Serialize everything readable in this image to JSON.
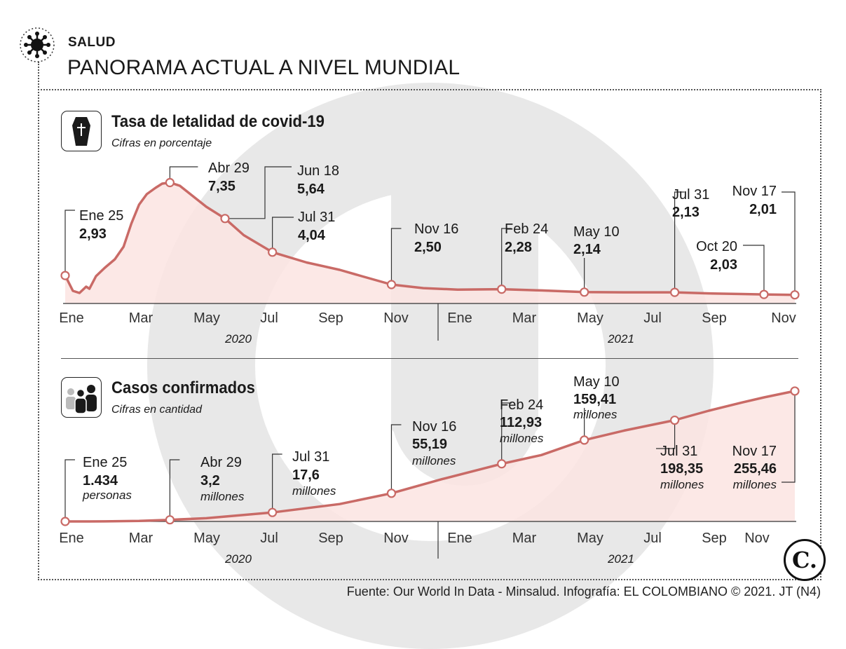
{
  "header": {
    "section": "SALUD",
    "title": "PANORAMA ACTUAL A NIVEL MUNDIAL"
  },
  "colors": {
    "line": "#c96a66",
    "fill": "#fbe4e2",
    "watermark": "#e7e7e7",
    "text": "#1a1a1a"
  },
  "charts": {
    "lethality": {
      "title": "Tasa de letalidad de covid-19",
      "subtitle": "Cifras en porcentaje",
      "icon": "coffin-icon"
    },
    "cases": {
      "title": "Casos confirmados",
      "subtitle": "Cifras en cantidad",
      "icon": "people-icon"
    }
  },
  "axis": {
    "months": [
      "Ene",
      "Mar",
      "May",
      "Jul",
      "Sep",
      "Nov",
      "Ene",
      "Mar",
      "May",
      "Jul",
      "Sep",
      "Nov"
    ],
    "years": [
      "2020",
      "2021"
    ]
  },
  "chart_data": [
    {
      "type": "area",
      "title": "Tasa de letalidad de covid-19",
      "subtitle": "Cifras en porcentaje",
      "unit": "%",
      "x_range": [
        "2020-01-25",
        "2021-11-17"
      ],
      "ylim": [
        1.6,
        7.6
      ],
      "series": [
        {
          "name": "Tasa de letalidad",
          "points": [
            [
              "2020-01-25",
              2.93
            ],
            [
              "2020-02-01",
              2.2
            ],
            [
              "2020-02-07",
              2.1
            ],
            [
              "2020-02-13",
              2.4
            ],
            [
              "2020-02-16",
              2.3
            ],
            [
              "2020-02-22",
              2.9
            ],
            [
              "2020-03-01",
              3.3
            ],
            [
              "2020-03-10",
              3.7
            ],
            [
              "2020-03-18",
              4.3
            ],
            [
              "2020-03-25",
              5.4
            ],
            [
              "2020-04-01",
              6.3
            ],
            [
              "2020-04-08",
              6.8
            ],
            [
              "2020-04-16",
              7.1
            ],
            [
              "2020-04-22",
              7.3
            ],
            [
              "2020-04-29",
              7.35
            ],
            [
              "2020-05-08",
              7.2
            ],
            [
              "2020-05-20",
              6.7
            ],
            [
              "2020-06-01",
              6.2
            ],
            [
              "2020-06-18",
              5.64
            ],
            [
              "2020-07-05",
              4.85
            ],
            [
              "2020-07-31",
              4.04
            ],
            [
              "2020-08-31",
              3.55
            ],
            [
              "2020-09-30",
              3.2
            ],
            [
              "2020-10-20",
              2.9
            ],
            [
              "2020-11-16",
              2.5
            ],
            [
              "2020-12-15",
              2.33
            ],
            [
              "2021-01-15",
              2.26
            ],
            [
              "2021-02-24",
              2.28
            ],
            [
              "2021-04-01",
              2.22
            ],
            [
              "2021-05-10",
              2.14
            ],
            [
              "2021-06-15",
              2.13
            ],
            [
              "2021-07-31",
              2.13
            ],
            [
              "2021-08-31",
              2.08
            ],
            [
              "2021-09-30",
              2.05
            ],
            [
              "2021-10-20",
              2.03
            ],
            [
              "2021-11-17",
              2.01
            ]
          ]
        }
      ],
      "annotations": [
        {
          "date": "2020-01-25",
          "label": "Ene 25",
          "value": "2,93"
        },
        {
          "date": "2020-04-29",
          "label": "Abr 29",
          "value": "7,35"
        },
        {
          "date": "2020-06-18",
          "label": "Jun 18",
          "value": "5,64"
        },
        {
          "date": "2020-07-31",
          "label": "Jul 31",
          "value": "4,04"
        },
        {
          "date": "2020-11-16",
          "label": "Nov 16",
          "value": "2,50"
        },
        {
          "date": "2021-02-24",
          "label": "Feb 24",
          "value": "2,28"
        },
        {
          "date": "2021-05-10",
          "label": "May 10",
          "value": "2,14"
        },
        {
          "date": "2021-07-31",
          "label": "Jul 31",
          "value": "2,13"
        },
        {
          "date": "2021-10-20",
          "label": "Oct 20",
          "value": "2,03"
        },
        {
          "date": "2021-11-17",
          "label": "Nov 17",
          "value": "2,01"
        }
      ]
    },
    {
      "type": "area",
      "title": "Casos confirmados",
      "subtitle": "Cifras en cantidad",
      "unit": "casos",
      "x_range": [
        "2020-01-25",
        "2021-11-17"
      ],
      "ylim": [
        0,
        265000000
      ],
      "series": [
        {
          "name": "Casos confirmados",
          "points": [
            [
              "2020-01-25",
              1434
            ],
            [
              "2020-03-01",
              90000
            ],
            [
              "2020-04-01",
              900000
            ],
            [
              "2020-04-29",
              3200000
            ],
            [
              "2020-06-01",
              6300000
            ],
            [
              "2020-07-31",
              17600000
            ],
            [
              "2020-09-30",
              34000000
            ],
            [
              "2020-11-16",
              55190000
            ],
            [
              "2021-01-01",
              83000000
            ],
            [
              "2021-02-24",
              112930000
            ],
            [
              "2021-04-01",
              130000000
            ],
            [
              "2021-05-10",
              159410000
            ],
            [
              "2021-06-15",
              178000000
            ],
            [
              "2021-07-31",
              198350000
            ],
            [
              "2021-08-31",
              217000000
            ],
            [
              "2021-09-30",
              233000000
            ],
            [
              "2021-10-20",
              243000000
            ],
            [
              "2021-11-17",
              255460000
            ]
          ]
        }
      ],
      "annotations": [
        {
          "date": "2020-01-25",
          "label": "Ene 25",
          "value": "1.434",
          "unit": "personas"
        },
        {
          "date": "2020-04-29",
          "label": "Abr 29",
          "value": "3,2",
          "unit": "millones"
        },
        {
          "date": "2020-07-31",
          "label": "Jul 31",
          "value": "17,6",
          "unit": "millones"
        },
        {
          "date": "2020-11-16",
          "label": "Nov 16",
          "value": "55,19",
          "unit": "millones"
        },
        {
          "date": "2021-02-24",
          "label": "Feb 24",
          "value": "112,93",
          "unit": "millones"
        },
        {
          "date": "2021-05-10",
          "label": "May 10",
          "value": "159,41",
          "unit": "millones"
        },
        {
          "date": "2021-07-31",
          "label": "Jul 31",
          "value": "198,35",
          "unit": "millones"
        },
        {
          "date": "2021-11-17",
          "label": "Nov 17",
          "value": "255,46",
          "unit": "millones"
        }
      ]
    }
  ],
  "footer": {
    "source": "Fuente: Our World In Data - Minsalud. Infografía: EL COLOMBIANO © 2021. JT (N4)",
    "logo_letter": "C."
  }
}
